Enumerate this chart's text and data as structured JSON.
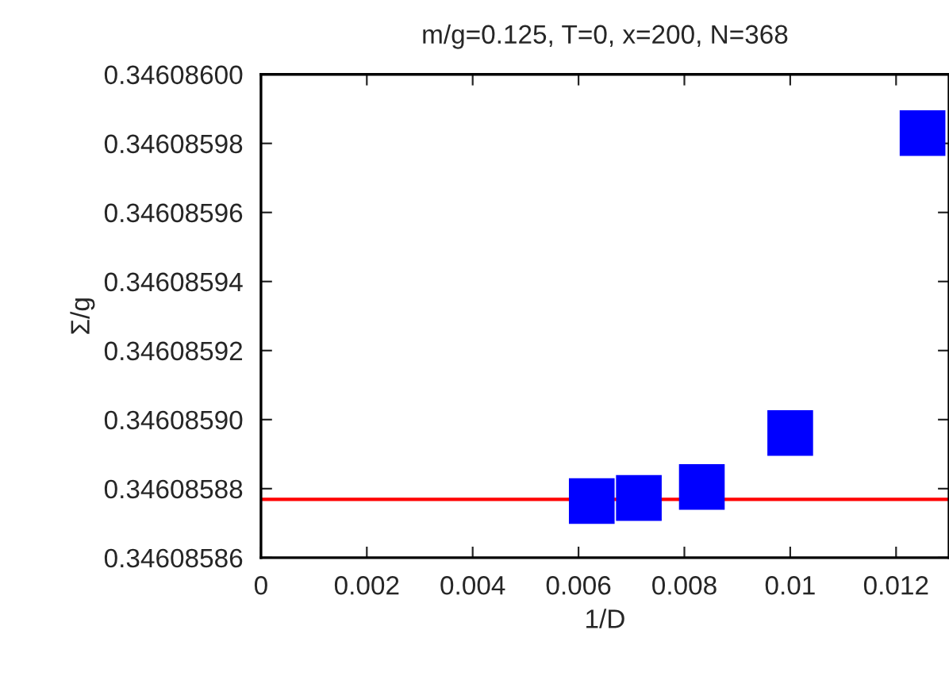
{
  "chart_data": {
    "type": "scatter",
    "title": "m/g=0.125, T=0, x=200, N=368",
    "xlabel": "1/D",
    "ylabel": "Σ/g",
    "x": [
      0.00625,
      0.00714,
      0.00833,
      0.01,
      0.0125
    ],
    "series": [
      {
        "color": "#0000ff",
        "values": [
          0.3460858764,
          0.3460858773,
          0.3460858805,
          0.3460858961,
          0.346085983
        ]
      }
    ],
    "marker": "square",
    "ref_lines": [
      {
        "axis": "y",
        "value": 0.3460858769,
        "color": "#ff0000"
      }
    ],
    "xlim": [
      0,
      0.013
    ],
    "xticks": [
      0,
      0.002,
      0.004,
      0.006,
      0.008,
      0.01,
      0.012
    ],
    "ylim": [
      0.34608586,
      0.346086
    ],
    "yticks": [
      {
        "value": 0.34608586,
        "label": "0.34608586"
      },
      {
        "value": 0.34608588,
        "label": "0.34608588"
      },
      {
        "value": 0.3460859,
        "label": "0.34608590"
      },
      {
        "value": 0.34608592,
        "label": "0.34608592"
      },
      {
        "value": 0.34608594,
        "label": "0.34608594"
      },
      {
        "value": 0.34608596,
        "label": "0.34608596"
      },
      {
        "value": 0.34608598,
        "label": "0.34608598"
      },
      {
        "value": 0.346086,
        "label": "0.34608600"
      }
    ],
    "grid": false
  }
}
